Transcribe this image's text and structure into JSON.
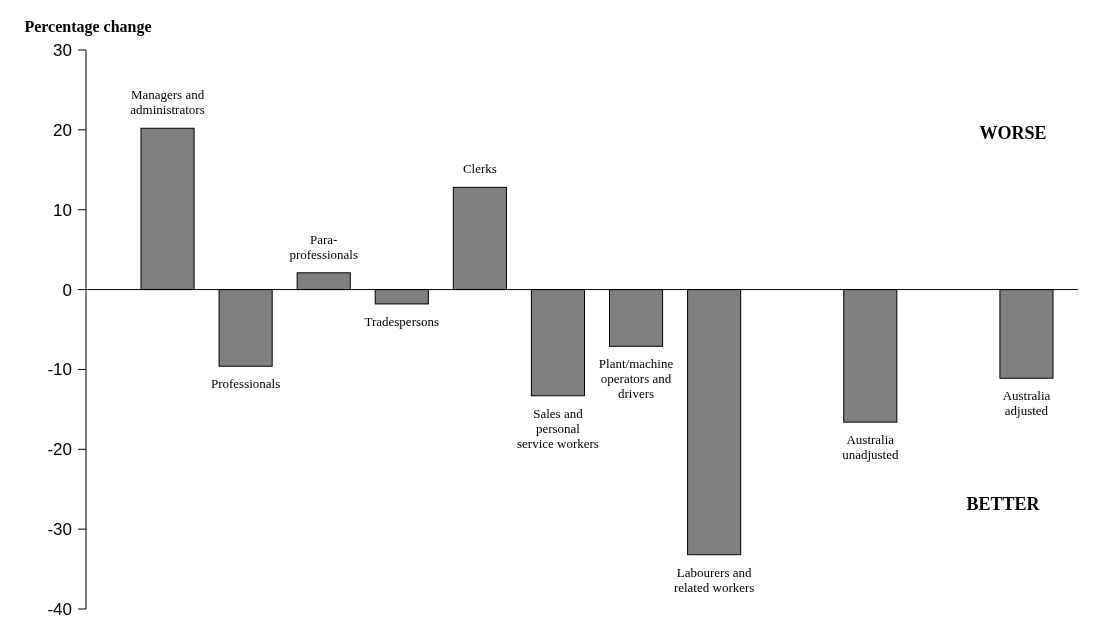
{
  "chart_data": {
    "type": "bar",
    "ylabel": "Percentage change",
    "categories": [
      "Managers and administrators",
      "Professionals",
      "Para-professionals",
      "Tradespersons",
      "Clerks",
      "Sales and personal service workers",
      "Plant/machine operators and drivers",
      "Labourers and related workers",
      null,
      "Australia unadjusted",
      null,
      "Australia adjusted"
    ],
    "values": [
      20.2,
      -9.6,
      2.1,
      -1.8,
      12.8,
      -13.3,
      -7.1,
      -33.2,
      null,
      -16.6,
      null,
      -11.1
    ],
    "color": "#808080",
    "ylim": [
      -40,
      30
    ],
    "yticks": [
      -40,
      -30,
      -20,
      -10,
      0,
      10,
      20,
      30
    ],
    "annotations": [
      "WORSE",
      "BETTER"
    ]
  }
}
